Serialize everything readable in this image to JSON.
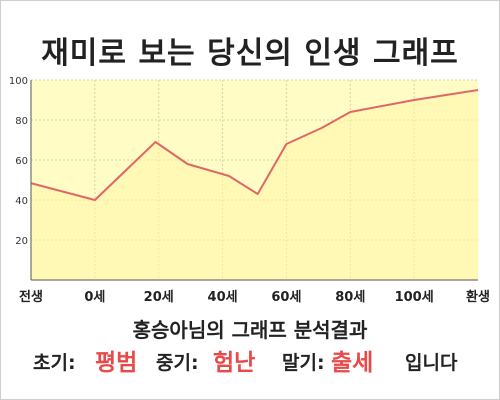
{
  "chart_data": {
    "type": "area",
    "title": "재미로 보는 당신의 인생 그래프",
    "x": [
      "전생",
      "0세",
      "20세",
      "40세",
      "60세",
      "80세",
      "100세",
      "환생"
    ],
    "points": [
      {
        "x": -0.43,
        "y": 52
      },
      {
        "x": 1.0,
        "y": 40
      },
      {
        "x": 1.95,
        "y": 69
      },
      {
        "x": 2.45,
        "y": 58
      },
      {
        "x": 3.1,
        "y": 52
      },
      {
        "x": 3.55,
        "y": 43
      },
      {
        "x": 4.0,
        "y": 68
      },
      {
        "x": 4.55,
        "y": 76
      },
      {
        "x": 5.0,
        "y": 84
      },
      {
        "x": 6.0,
        "y": 90
      },
      {
        "x": 7.2,
        "y": 96
      }
    ],
    "ylim": [
      0,
      100
    ],
    "yticks": [
      20,
      40,
      60,
      80,
      100
    ],
    "grid": true,
    "colors": {
      "line": "#e06767",
      "fill": "#fffcc6",
      "grid": "#d9d2a0",
      "axis": "#555555"
    }
  },
  "result": {
    "title": "홍승아님의 그래프 분석결과",
    "early_label": "초기:",
    "early_value": "평범",
    "mid_label": "중기:",
    "mid_value": "험난",
    "late_label": "말기:",
    "late_value": "출세",
    "suffix": "입니다",
    "value_color": "#e84a4a"
  }
}
